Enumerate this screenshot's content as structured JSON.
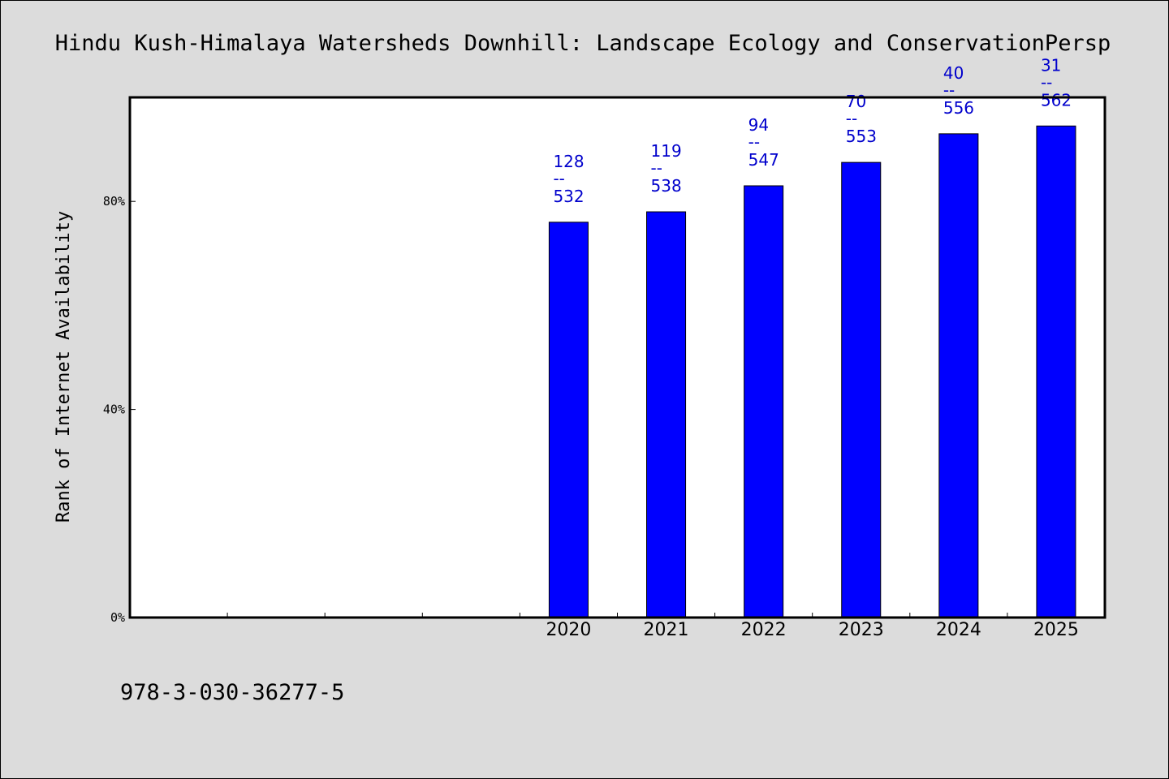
{
  "chart_data": {
    "type": "bar",
    "title": "Hindu Kush-Himalaya Watersheds Downhill: Landscape Ecology and ConservationPersp",
    "xlabel": "",
    "ylabel": "Rank of Internet Availability",
    "categories": [
      "",
      "",
      "",
      "",
      "2020",
      "2021",
      "2022",
      "2023",
      "2024",
      "2025"
    ],
    "values": [
      null,
      null,
      null,
      null,
      76,
      78,
      83,
      87.5,
      93,
      94.5
    ],
    "data_labels": [
      {
        "category": "2020",
        "rank": "128",
        "total": "532"
      },
      {
        "category": "2021",
        "rank": "119",
        "total": "538"
      },
      {
        "category": "2022",
        "rank": "94",
        "total": "547"
      },
      {
        "category": "2023",
        "rank": "70",
        "total": "553"
      },
      {
        "category": "2024",
        "rank": "40",
        "total": "556"
      },
      {
        "category": "2025",
        "rank": "31",
        "total": "562"
      }
    ],
    "label_separator": "--",
    "yticks": [
      0,
      40,
      80
    ],
    "ytick_labels": [
      "0%",
      "40%",
      "80%"
    ],
    "ylim": [
      0,
      100
    ],
    "grid": false,
    "bar_color": "#0000ff",
    "label_color": "#0000cc",
    "background_color": "#dcdcdc",
    "plot_background_color": "#ffffff"
  },
  "footer": {
    "isbn": "978-3-030-36277-5"
  }
}
